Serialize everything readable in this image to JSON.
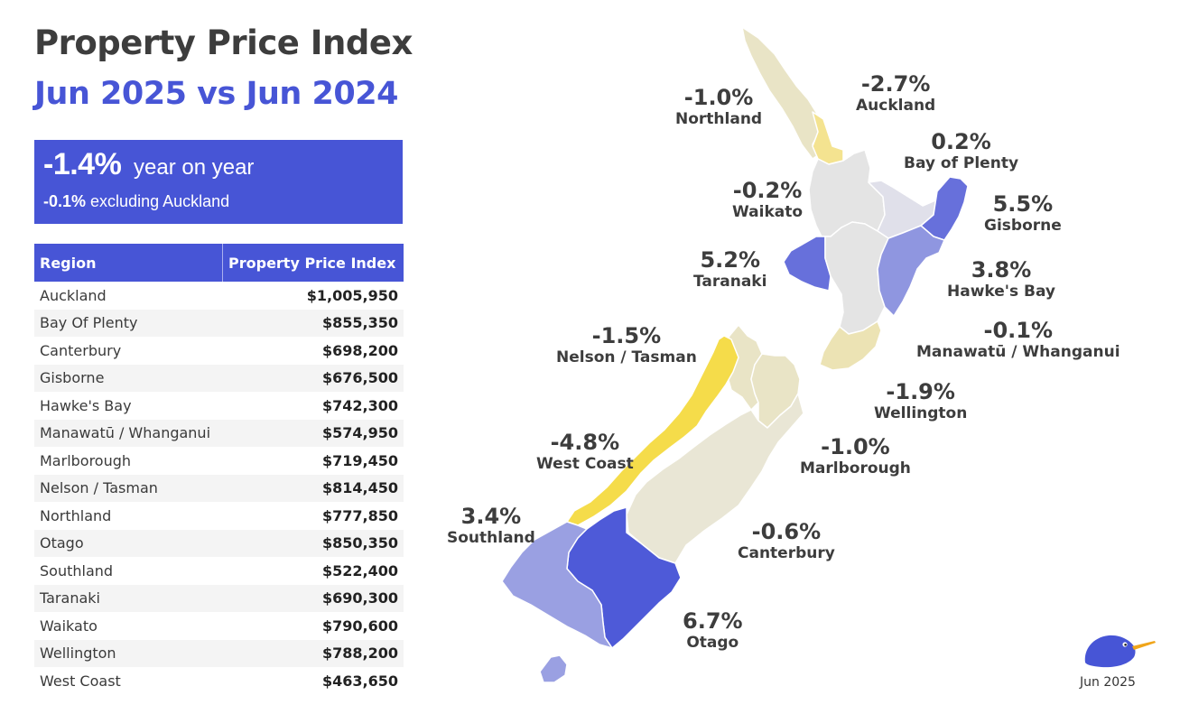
{
  "title": "Property Price Index",
  "subtitle": "Jun 2025 vs Jun 2024",
  "summary": {
    "headline_value": "-1.4%",
    "headline_text": "year on year",
    "sub_value": "-0.1%",
    "sub_text": "excluding Auckland"
  },
  "table": {
    "headers": [
      "Region",
      "Property Price Index"
    ],
    "rows": [
      {
        "region": "Auckland",
        "value": "$1,005,950"
      },
      {
        "region": "Bay Of Plenty",
        "value": "$855,350"
      },
      {
        "region": "Canterbury",
        "value": "$698,200"
      },
      {
        "region": "Gisborne",
        "value": "$676,500"
      },
      {
        "region": "Hawke's Bay",
        "value": "$742,300"
      },
      {
        "region": "Manawatū / Whanganui",
        "value": "$574,950"
      },
      {
        "region": "Marlborough",
        "value": "$719,450"
      },
      {
        "region": "Nelson / Tasman",
        "value": "$814,450"
      },
      {
        "region": "Northland",
        "value": "$777,850"
      },
      {
        "region": "Otago",
        "value": "$850,350"
      },
      {
        "region": "Southland",
        "value": "$522,400"
      },
      {
        "region": "Taranaki",
        "value": "$690,300"
      },
      {
        "region": "Waikato",
        "value": "$790,600"
      },
      {
        "region": "Wellington",
        "value": "$788,200"
      },
      {
        "region": "West Coast",
        "value": "$463,650"
      }
    ]
  },
  "map": {
    "regions": [
      {
        "key": "northland",
        "name": "Northland",
        "change": "-1.0%",
        "color": "#e9e4c6"
      },
      {
        "key": "auckland",
        "name": "Auckland",
        "change": "-2.7%",
        "color": "#f4e390"
      },
      {
        "key": "bay_of_plenty",
        "name": "Bay of Plenty",
        "change": "0.2%",
        "color": "#e0e0ea"
      },
      {
        "key": "waikato",
        "name": "Waikato",
        "change": "-0.2%",
        "color": "#e4e4e4"
      },
      {
        "key": "gisborne",
        "name": "Gisborne",
        "change": "5.5%",
        "color": "#6770db"
      },
      {
        "key": "taranaki",
        "name": "Taranaki",
        "change": "5.2%",
        "color": "#6770db"
      },
      {
        "key": "hawkes_bay",
        "name": "Hawke's Bay",
        "change": "3.8%",
        "color": "#8f96e0"
      },
      {
        "key": "manawatu",
        "name": "Manawatū / Whanganui",
        "change": "-0.1%",
        "color": "#e4e4e4"
      },
      {
        "key": "wellington",
        "name": "Wellington",
        "change": "-1.9%",
        "color": "#ece3b4"
      },
      {
        "key": "nelson",
        "name": "Nelson / Tasman",
        "change": "-1.5%",
        "color": "#e9e4c6"
      },
      {
        "key": "marlborough",
        "name": "Marlborough",
        "change": "-1.0%",
        "color": "#e9e4c6"
      },
      {
        "key": "west_coast",
        "name": "West Coast",
        "change": "-4.8%",
        "color": "#f5dc4a"
      },
      {
        "key": "canterbury",
        "name": "Canterbury",
        "change": "-0.6%",
        "color": "#e9e6d5"
      },
      {
        "key": "southland",
        "name": "Southland",
        "change": "3.4%",
        "color": "#9aa0e2"
      },
      {
        "key": "otago",
        "name": "Otago",
        "change": "6.7%",
        "color": "#4e5ad8"
      }
    ]
  },
  "footer": {
    "date": "Jun 2025",
    "logo": "kiwi-bird-logo"
  }
}
